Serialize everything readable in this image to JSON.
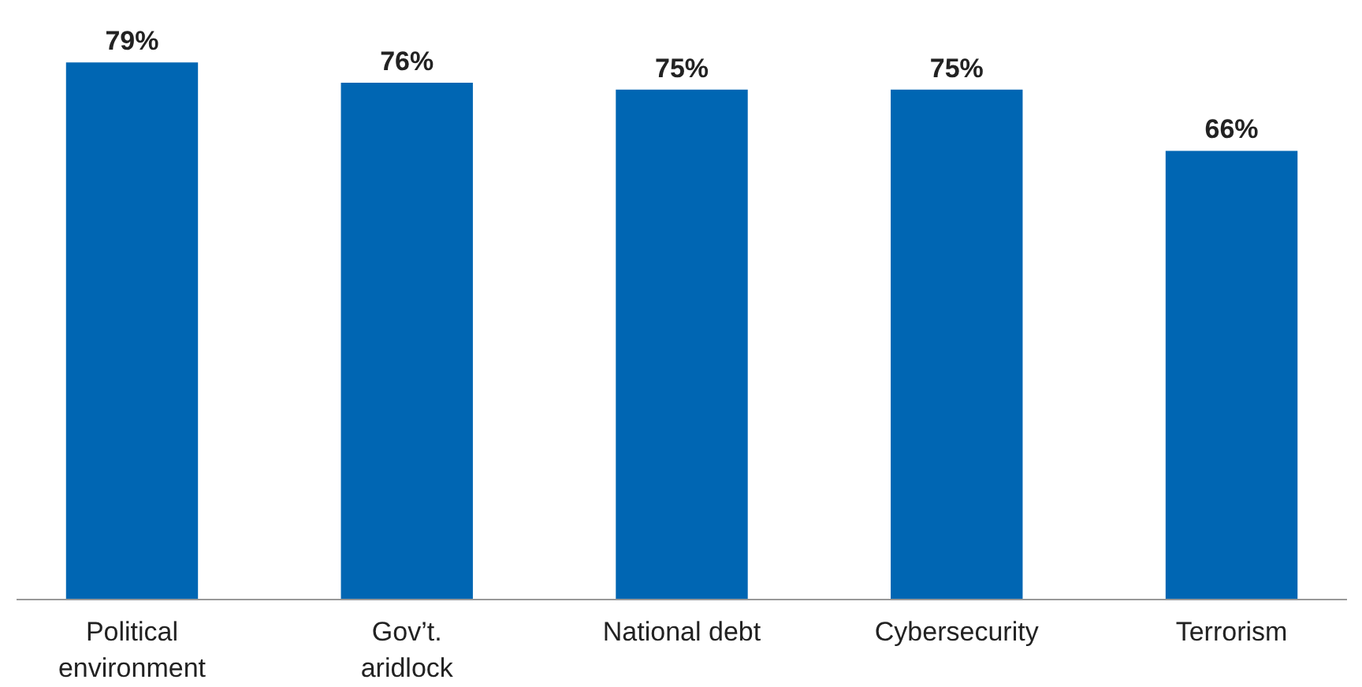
{
  "chart_data": {
    "type": "bar",
    "categories": [
      "Political\nenvironment",
      "Gov’t.\naridlock",
      "National debt",
      "Cybersecurity",
      "Terrorism"
    ],
    "values": [
      79,
      76,
      75,
      75,
      66
    ],
    "color": "#0066b3",
    "value_labels": [
      "79%",
      "76%",
      "75%",
      "75%",
      "66%"
    ],
    "grid": false
  }
}
